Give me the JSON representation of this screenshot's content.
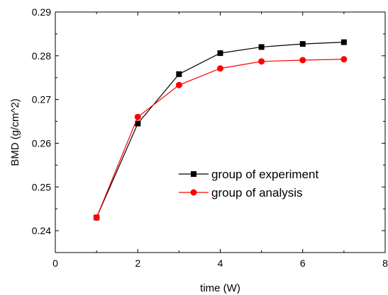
{
  "chart_data": {
    "type": "line",
    "title": "",
    "xlabel": "time (W)",
    "ylabel": "BMD (g/cm^2)",
    "xlim": [
      0,
      8
    ],
    "ylim": [
      0.235,
      0.29
    ],
    "x_ticks": [
      "0",
      "2",
      "4",
      "6",
      "8"
    ],
    "y_ticks": [
      "0.24",
      "0.25",
      "0.26",
      "0.27",
      "0.28",
      "0.29"
    ],
    "grid": false,
    "legend_position": "center-right",
    "series": [
      {
        "name": "group of experiment",
        "color": "#000000",
        "marker": "square",
        "x": [
          1,
          2,
          3,
          4,
          5,
          6,
          7
        ],
        "y": [
          0.243,
          0.2645,
          0.2758,
          0.2806,
          0.282,
          0.2827,
          0.2831
        ]
      },
      {
        "name": "group of analysis",
        "color": "#ff0000",
        "marker": "circle",
        "x": [
          1,
          2,
          3,
          4,
          5,
          6,
          7
        ],
        "y": [
          0.243,
          0.266,
          0.2733,
          0.2771,
          0.2787,
          0.279,
          0.2792
        ]
      }
    ]
  }
}
